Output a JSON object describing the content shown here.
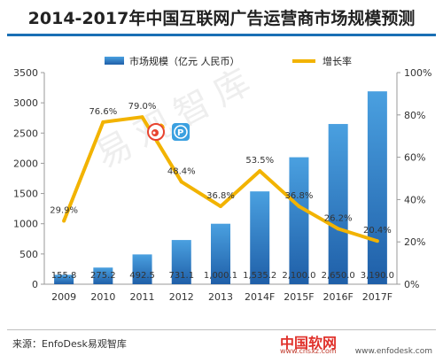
{
  "title": "2014-2017年中国互联网广告运营商市场规模预测",
  "source": "来源：EnfoDesk易观智库",
  "watermark": "易观智库",
  "footer_logo": "中国软网",
  "footer_url": "www.cnsxz.com",
  "footer_url_right": "www.enfodesk.com",
  "icons": [
    "weibo-icon",
    "p-app-icon"
  ],
  "colors": {
    "bar_top": "#4aa0e0",
    "bar_bottom": "#1f5fa8",
    "line": "#f2b300",
    "title_rule": "#1a6fb5"
  },
  "chart_data": {
    "type": "bar",
    "categories": [
      "2009",
      "2010",
      "2011",
      "2012",
      "2013",
      "2014F",
      "2015F",
      "2016F",
      "2017F"
    ],
    "series": [
      {
        "name": "市场规模（亿元 人民币）",
        "type": "bar",
        "axis": "left",
        "values": [
          155.8,
          275.2,
          492.5,
          731.1,
          1000.1,
          1535.2,
          2100.0,
          2650.0,
          3190.0
        ],
        "value_labels": [
          "155.8",
          "275.2",
          "492.5",
          "731.1",
          "1,000.1",
          "1,535.2",
          "2,100.0",
          "2,650.0",
          "3,190.0"
        ]
      },
      {
        "name": "增长率",
        "type": "line",
        "axis": "right",
        "values": [
          29.9,
          76.6,
          79.0,
          48.4,
          36.8,
          53.5,
          36.8,
          26.2,
          20.4
        ],
        "value_labels": [
          "29.9%",
          "76.6%",
          "79.0%",
          "48.4%",
          "36.8%",
          "53.5%",
          "36.8%",
          "26.2%",
          "20.4%"
        ]
      }
    ],
    "y_left": {
      "lim": [
        0,
        3500
      ],
      "ticks": [
        "0",
        "500",
        "1000",
        "1500",
        "2000",
        "2500",
        "3000",
        "3500"
      ]
    },
    "y_right": {
      "lim": [
        0,
        100
      ],
      "ticks": [
        "0%",
        "20%",
        "40%",
        "60%",
        "80%",
        "100%"
      ]
    },
    "legend_position": "top",
    "grid": false
  }
}
